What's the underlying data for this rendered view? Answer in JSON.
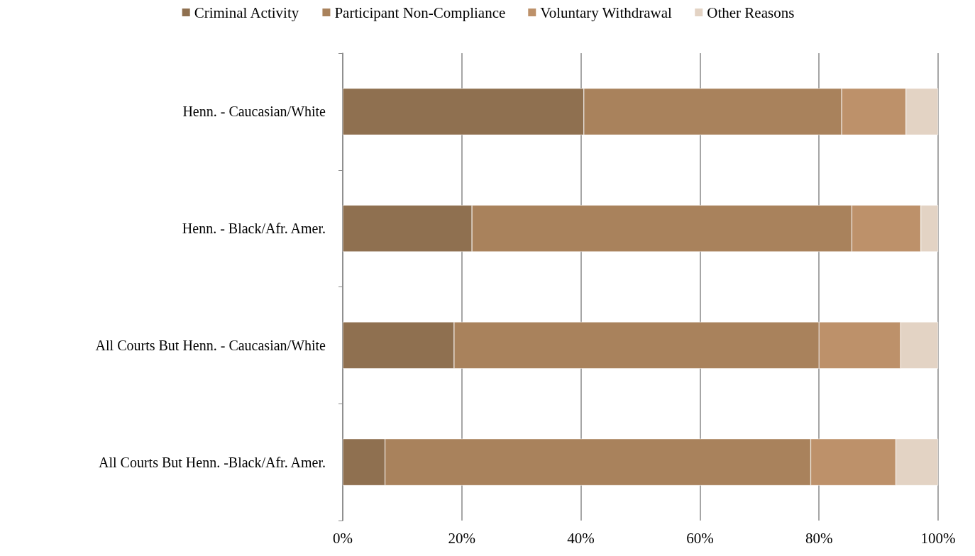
{
  "chart_data": {
    "type": "bar",
    "orientation": "horizontal",
    "stacked": true,
    "categories": [
      "Henn. - Caucasian/White",
      "Henn. - Black/Afr. Amer.",
      "All Courts But Henn. - Caucasian/White",
      "All Courts But Henn. -Black/Afr. Amer."
    ],
    "series": [
      {
        "name": "Criminal Activity",
        "color": "#8f7050",
        "values": [
          40.5,
          21.7,
          18.7,
          7.1
        ]
      },
      {
        "name": "Participant Non-Compliance",
        "color": "#a9825c",
        "values": [
          43.3,
          63.8,
          61.3,
          71.5
        ]
      },
      {
        "name": "Voluntary Withdrawal",
        "color": "#bd916a",
        "values": [
          10.8,
          11.6,
          13.7,
          14.3
        ]
      },
      {
        "name": "Other Reasons",
        "color": "#e3d3c4",
        "values": [
          5.4,
          2.9,
          6.3,
          7.1
        ]
      }
    ],
    "xlim": [
      0,
      100
    ],
    "xticks": [
      {
        "value": 0,
        "label": "0%"
      },
      {
        "value": 20,
        "label": "20%"
      },
      {
        "value": 40,
        "label": "40%"
      },
      {
        "value": 60,
        "label": "60%"
      },
      {
        "value": 80,
        "label": "80%"
      },
      {
        "value": 100,
        "label": "100%"
      }
    ],
    "grid": "x",
    "legend": "top"
  }
}
